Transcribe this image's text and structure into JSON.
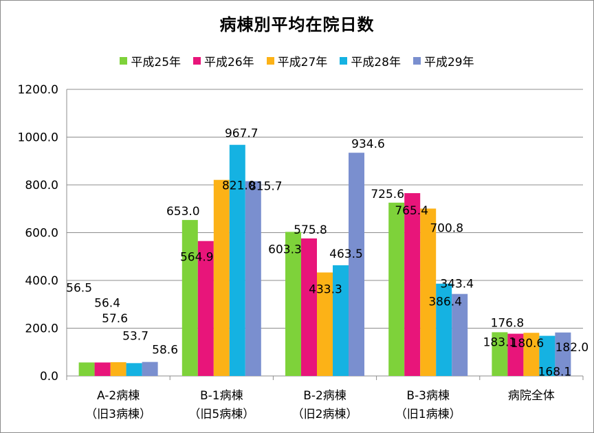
{
  "chart_data": {
    "type": "bar",
    "title": "病棟別平均在院日数",
    "categories": [
      [
        "A-2病棟",
        "（旧3病棟）"
      ],
      [
        "B-1病棟",
        "（旧5病棟）"
      ],
      [
        "B-2病棟",
        "（旧2病棟）"
      ],
      [
        "B-3病棟",
        "（旧1病棟）"
      ],
      [
        "病院全体",
        ""
      ]
    ],
    "series": [
      {
        "name": "平成25年",
        "color": "#7ed23a",
        "values": [
          56.5,
          653.0,
          603.3,
          725.6,
          183.1
        ]
      },
      {
        "name": "平成26年",
        "color": "#e8157a",
        "values": [
          56.4,
          564.9,
          575.8,
          765.4,
          176.8
        ]
      },
      {
        "name": "平成27年",
        "color": "#fcb217",
        "values": [
          57.6,
          821.0,
          433.3,
          700.8,
          180.6
        ]
      },
      {
        "name": "平成28年",
        "color": "#15b2e2",
        "values": [
          53.7,
          967.7,
          463.5,
          386.4,
          168.1
        ]
      },
      {
        "name": "平成29年",
        "color": "#7a8fcf",
        "values": [
          58.6,
          815.7,
          934.6,
          343.4,
          182.0
        ]
      }
    ],
    "ylim": [
      0,
      1200
    ],
    "yticks": [
      "0.0",
      "200.0",
      "400.0",
      "600.0",
      "800.0",
      "1000.0",
      "1200.0"
    ],
    "grid": true,
    "legend_position": "top"
  }
}
